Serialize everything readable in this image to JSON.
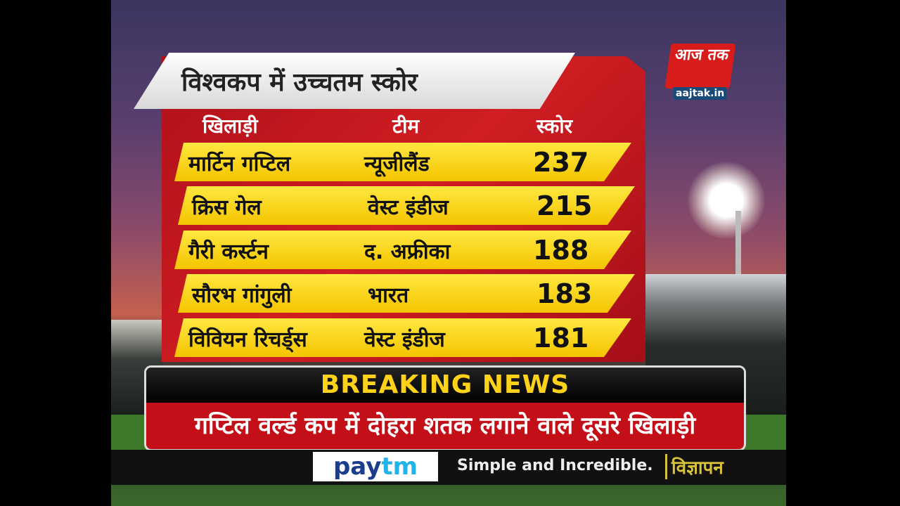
{
  "channel": {
    "logo_text": "आज तक",
    "url": "aajtak.in",
    "brand_color": "#d81c1c"
  },
  "graphic": {
    "title": "विश्वकप में उच्चतम स्कोर",
    "columns": [
      "खिलाड़ी",
      "टीम",
      "स्कोर"
    ],
    "rows": [
      {
        "player": "मार्टिन गप्टिल",
        "team": "न्यूजीलैंड",
        "score": "237"
      },
      {
        "player": "क्रिस गेल",
        "team": "वेस्ट इंडीज",
        "score": "215"
      },
      {
        "player": "गैरी कर्स्टन",
        "team": "द. अफ्रीका",
        "score": "188"
      },
      {
        "player": "सौरभ गांगुली",
        "team": "भारत",
        "score": "183"
      },
      {
        "player": "विवियन रिचर्ड्स",
        "team": "वेस्ट इंडीज",
        "score": "181"
      }
    ]
  },
  "breaking": {
    "label": "BREAKING NEWS",
    "headline": "गप्टिल वर्ल्ड कप में दोहरा शतक लगाने वाले दूसरे खिलाड़ी"
  },
  "ad": {
    "brand": "pay",
    "brand_accent": "tm",
    "tagline": "Simple and Incredible.",
    "label": "विज्ञापन"
  }
}
